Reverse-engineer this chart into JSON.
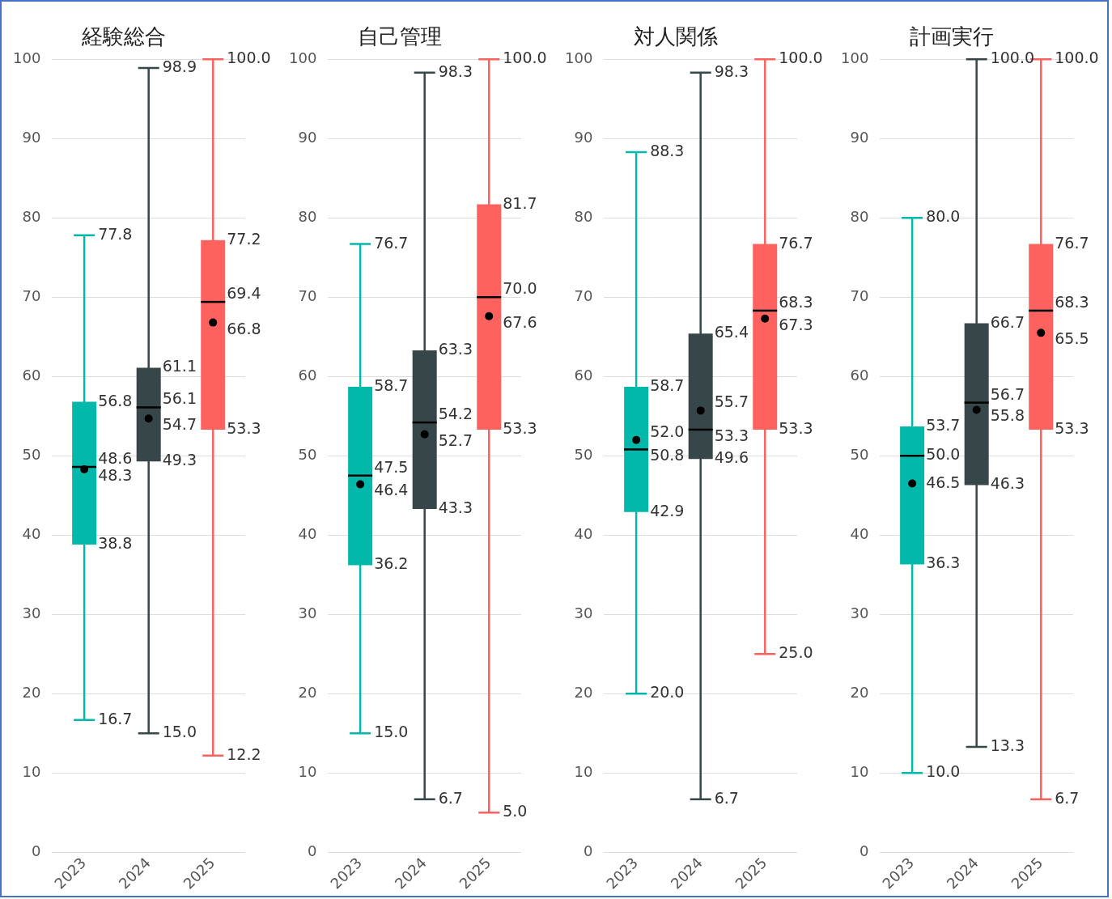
{
  "chart_data": [
    {
      "type": "box",
      "title": "経験総合",
      "categories": [
        "2023",
        "2024",
        "2025"
      ],
      "ylim": [
        0,
        100
      ],
      "yticks": [
        0,
        10,
        20,
        30,
        40,
        50,
        60,
        70,
        80,
        90,
        100
      ],
      "grid": "y",
      "series": [
        {
          "colors": [
            "#01b8aa",
            "#374649",
            "#fd625e"
          ],
          "boxes": [
            {
              "low": 16.7,
              "q1": 38.8,
              "median": 48.6,
              "q3": 56.8,
              "high": 77.8,
              "mean": 48.3
            },
            {
              "low": 15.0,
              "q1": 49.3,
              "median": 56.1,
              "q3": 61.1,
              "high": 98.9,
              "mean": 54.7
            },
            {
              "low": 12.2,
              "q1": 53.3,
              "median": 69.4,
              "q3": 77.2,
              "high": 100.0,
              "mean": 66.8
            }
          ]
        }
      ],
      "annotations": [
        {
          "text": "77.8",
          "x": "2023",
          "y": 77.8
        },
        {
          "text": "56.8",
          "x": "2023",
          "y": 56.8
        },
        {
          "text": "48.6",
          "x": "2023",
          "y": 48.6
        },
        {
          "text": "48.3",
          "x": "2023",
          "y": 48.3
        },
        {
          "text": "38.8",
          "x": "2023",
          "y": 38.8
        },
        {
          "text": "16.7",
          "x": "2023",
          "y": 16.7
        },
        {
          "text": "98.9",
          "x": "2024",
          "y": 98.9
        },
        {
          "text": "61.1",
          "x": "2024",
          "y": 61.1
        },
        {
          "text": "56.1",
          "x": "2024",
          "y": 56.1
        },
        {
          "text": "54.7",
          "x": "2024",
          "y": 54.7
        },
        {
          "text": "49.3",
          "x": "2024",
          "y": 49.3
        },
        {
          "text": "15.0",
          "x": "2024",
          "y": 15.0
        },
        {
          "text": "100.0",
          "x": "2025",
          "y": 100.0
        },
        {
          "text": "77.2",
          "x": "2025",
          "y": 77.2
        },
        {
          "text": "69.4",
          "x": "2025",
          "y": 69.4
        },
        {
          "text": "66.8",
          "x": "2025",
          "y": 66.8
        },
        {
          "text": "53.3",
          "x": "2025",
          "y": 53.3
        },
        {
          "text": "12.2",
          "x": "2025",
          "y": 12.2
        }
      ]
    },
    {
      "type": "box",
      "title": "自己管理",
      "categories": [
        "2023",
        "2024",
        "2025"
      ],
      "ylim": [
        0,
        100
      ],
      "yticks": [
        0,
        10,
        20,
        30,
        40,
        50,
        60,
        70,
        80,
        90,
        100
      ],
      "grid": "y",
      "series": [
        {
          "colors": [
            "#01b8aa",
            "#374649",
            "#fd625e"
          ],
          "boxes": [
            {
              "low": 15.0,
              "q1": 36.2,
              "median": 47.5,
              "q3": 58.7,
              "high": 76.7,
              "mean": 46.4
            },
            {
              "low": 6.7,
              "q1": 43.3,
              "median": 54.2,
              "q3": 63.3,
              "high": 98.3,
              "mean": 52.7
            },
            {
              "low": 5.0,
              "q1": 53.3,
              "median": 70.0,
              "q3": 81.7,
              "high": 100.0,
              "mean": 67.6
            }
          ]
        }
      ],
      "annotations": [
        {
          "text": "76.7",
          "x": "2023",
          "y": 76.7
        },
        {
          "text": "58.7",
          "x": "2023",
          "y": 58.7
        },
        {
          "text": "47.5",
          "x": "2023",
          "y": 47.5
        },
        {
          "text": "46.4",
          "x": "2023",
          "y": 46.4
        },
        {
          "text": "36.2",
          "x": "2023",
          "y": 36.2
        },
        {
          "text": "15.0",
          "x": "2023",
          "y": 15.0
        },
        {
          "text": "98.3",
          "x": "2024",
          "y": 98.3
        },
        {
          "text": "63.3",
          "x": "2024",
          "y": 63.3
        },
        {
          "text": "54.2",
          "x": "2024",
          "y": 54.2
        },
        {
          "text": "52.7",
          "x": "2024",
          "y": 52.7
        },
        {
          "text": "43.3",
          "x": "2024",
          "y": 43.3
        },
        {
          "text": "6.7",
          "x": "2024",
          "y": 6.7
        },
        {
          "text": "100.0",
          "x": "2025",
          "y": 100.0
        },
        {
          "text": "81.7",
          "x": "2025",
          "y": 81.7
        },
        {
          "text": "70.0",
          "x": "2025",
          "y": 70.0
        },
        {
          "text": "67.6",
          "x": "2025",
          "y": 67.6
        },
        {
          "text": "53.3",
          "x": "2025",
          "y": 53.3
        },
        {
          "text": "5.0",
          "x": "2025",
          "y": 5.0
        }
      ]
    },
    {
      "type": "box",
      "title": "対人関係",
      "categories": [
        "2023",
        "2024",
        "2025"
      ],
      "ylim": [
        0,
        100
      ],
      "yticks": [
        0,
        10,
        20,
        30,
        40,
        50,
        60,
        70,
        80,
        90,
        100
      ],
      "grid": "y",
      "series": [
        {
          "colors": [
            "#01b8aa",
            "#374649",
            "#fd625e"
          ],
          "boxes": [
            {
              "low": 20.0,
              "q1": 42.9,
              "median": 50.8,
              "q3": 58.7,
              "high": 88.3,
              "mean": 52.0
            },
            {
              "low": 6.7,
              "q1": 49.6,
              "median": 53.3,
              "q3": 65.4,
              "high": 98.3,
              "mean": 55.7
            },
            {
              "low": 25.0,
              "q1": 53.3,
              "median": 68.3,
              "q3": 76.7,
              "high": 100.0,
              "mean": 67.3
            }
          ]
        }
      ],
      "annotations": [
        {
          "text": "88.3",
          "x": "2023",
          "y": 88.3
        },
        {
          "text": "58.7",
          "x": "2023",
          "y": 58.7
        },
        {
          "text": "52.0",
          "x": "2023",
          "y": 52.0
        },
        {
          "text": "50.8",
          "x": "2023",
          "y": 50.8
        },
        {
          "text": "42.9",
          "x": "2023",
          "y": 42.9
        },
        {
          "text": "20.0",
          "x": "2023",
          "y": 20.0
        },
        {
          "text": "98.3",
          "x": "2024",
          "y": 98.3
        },
        {
          "text": "65.4",
          "x": "2024",
          "y": 65.4
        },
        {
          "text": "55.7",
          "x": "2024",
          "y": 55.7
        },
        {
          "text": "53.3",
          "x": "2024",
          "y": 53.3
        },
        {
          "text": "49.6",
          "x": "2024",
          "y": 49.6
        },
        {
          "text": "6.7",
          "x": "2024",
          "y": 6.7
        },
        {
          "text": "100.0",
          "x": "2025",
          "y": 100.0
        },
        {
          "text": "76.7",
          "x": "2025",
          "y": 76.7
        },
        {
          "text": "68.3",
          "x": "2025",
          "y": 68.3
        },
        {
          "text": "67.3",
          "x": "2025",
          "y": 67.3
        },
        {
          "text": "53.3",
          "x": "2025",
          "y": 53.3
        },
        {
          "text": "25.0",
          "x": "2025",
          "y": 25.0
        }
      ]
    },
    {
      "type": "box",
      "title": "計画実行",
      "categories": [
        "2023",
        "2024",
        "2025"
      ],
      "ylim": [
        0,
        100
      ],
      "yticks": [
        0,
        10,
        20,
        30,
        40,
        50,
        60,
        70,
        80,
        90,
        100
      ],
      "grid": "y",
      "series": [
        {
          "colors": [
            "#01b8aa",
            "#374649",
            "#fd625e"
          ],
          "boxes": [
            {
              "low": 10.0,
              "q1": 36.3,
              "median": 50.0,
              "q3": 53.7,
              "high": 80.0,
              "mean": 46.5
            },
            {
              "low": 13.3,
              "q1": 46.3,
              "median": 56.7,
              "q3": 66.7,
              "high": 100.0,
              "mean": 55.8
            },
            {
              "low": 6.7,
              "q1": 53.3,
              "median": 68.3,
              "q3": 76.7,
              "high": 100.0,
              "mean": 65.5
            }
          ]
        }
      ],
      "annotations": [
        {
          "text": "80.0",
          "x": "2023",
          "y": 80.0
        },
        {
          "text": "53.7",
          "x": "2023",
          "y": 53.7
        },
        {
          "text": "50.0",
          "x": "2023",
          "y": 50.0
        },
        {
          "text": "46.5",
          "x": "2023",
          "y": 46.5
        },
        {
          "text": "36.3",
          "x": "2023",
          "y": 36.3
        },
        {
          "text": "10.0",
          "x": "2023",
          "y": 10.0
        },
        {
          "text": "100.0",
          "x": "2024",
          "y": 100.0
        },
        {
          "text": "66.7",
          "x": "2024",
          "y": 66.7
        },
        {
          "text": "56.7",
          "x": "2024",
          "y": 56.7
        },
        {
          "text": "55.8",
          "x": "2024",
          "y": 55.8
        },
        {
          "text": "46.3",
          "x": "2024",
          "y": 46.3
        },
        {
          "text": "13.3",
          "x": "2024",
          "y": 13.3
        },
        {
          "text": "100.0",
          "x": "2025",
          "y": 100.0
        },
        {
          "text": "76.7",
          "x": "2025",
          "y": 76.7
        },
        {
          "text": "68.3",
          "x": "2025",
          "y": 68.3
        },
        {
          "text": "65.5",
          "x": "2025",
          "y": 65.5
        },
        {
          "text": "53.3",
          "x": "2025",
          "y": 53.3
        },
        {
          "text": "6.7",
          "x": "2025",
          "y": 6.7
        }
      ]
    }
  ]
}
